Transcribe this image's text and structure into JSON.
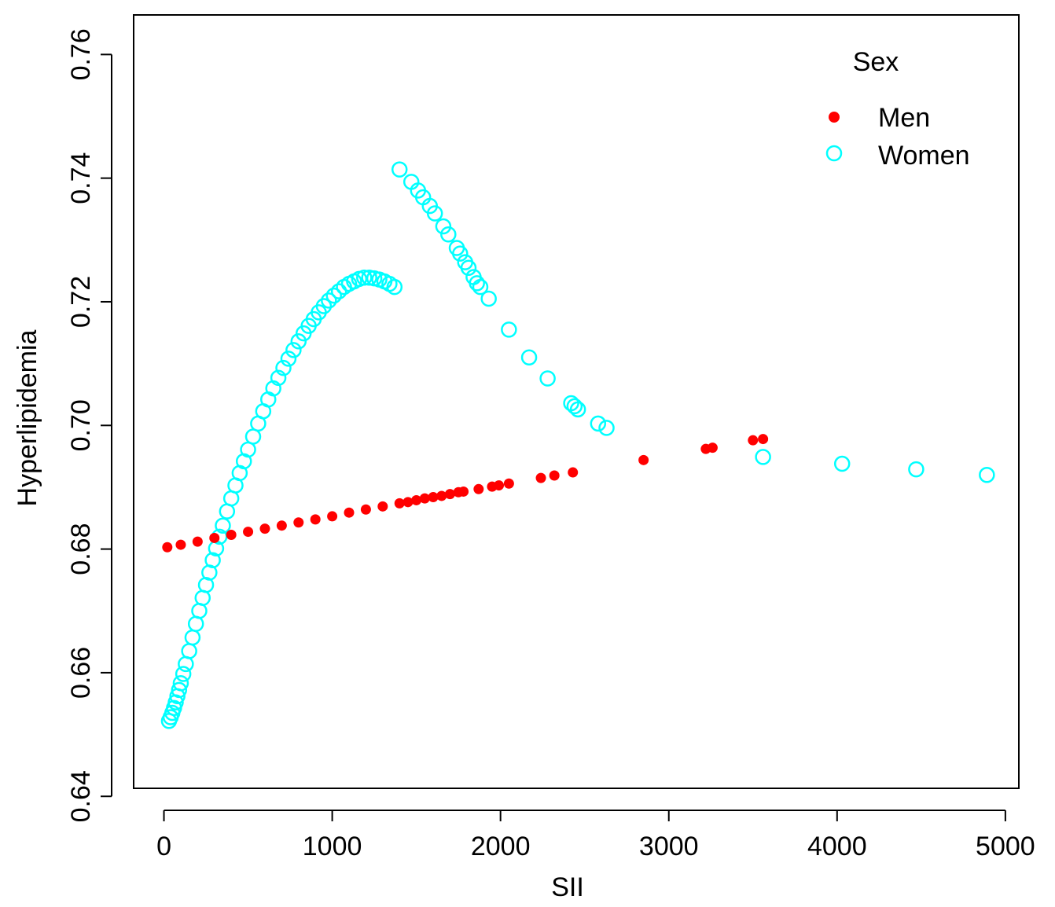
{
  "chart_data": {
    "type": "scatter",
    "title": "",
    "xlabel": "SII",
    "ylabel": "Hyperlipidemia",
    "xlim": [
      -180,
      5080
    ],
    "ylim": [
      0.6413,
      0.7664
    ],
    "xticks": [
      0,
      1000,
      2000,
      3000,
      4000,
      5000
    ],
    "xtick_labels": [
      "0",
      "1000",
      "2000",
      "3000",
      "4000",
      "5000"
    ],
    "yticks": [
      0.64,
      0.66,
      0.68,
      0.7,
      0.72,
      0.74,
      0.76
    ],
    "ytick_labels": [
      "0.64",
      "0.66",
      "0.68",
      "0.70",
      "0.72",
      "0.74",
      "0.76"
    ],
    "grid": false,
    "legend": {
      "title": "Sex",
      "position": "top-right",
      "entries": [
        {
          "label": "Men",
          "marker": "filled-circle",
          "color": "#ff0000"
        },
        {
          "label": "Women",
          "marker": "open-circle",
          "color": "#00ffff"
        }
      ]
    },
    "series": [
      {
        "name": "Men",
        "color": "#ff0000",
        "marker": "filled-circle",
        "x": [
          20,
          100,
          200,
          300,
          400,
          500,
          600,
          700,
          800,
          900,
          1000,
          1100,
          1200,
          1300,
          1400,
          1450,
          1500,
          1550,
          1600,
          1650,
          1700,
          1750,
          1780,
          1870,
          1950,
          1990,
          2050,
          2240,
          2320,
          2430,
          2850,
          3220,
          3260,
          3500,
          3560
        ],
        "y": [
          0.6803,
          0.6807,
          0.6812,
          0.6818,
          0.6823,
          0.6828,
          0.6833,
          0.6838,
          0.6843,
          0.6848,
          0.6853,
          0.6859,
          0.6864,
          0.6869,
          0.6874,
          0.6876,
          0.6879,
          0.6882,
          0.6884,
          0.6886,
          0.6889,
          0.6892,
          0.6893,
          0.6897,
          0.6901,
          0.6903,
          0.6906,
          0.6915,
          0.6919,
          0.6924,
          0.6944,
          0.6962,
          0.6964,
          0.6976,
          0.6978
        ]
      },
      {
        "name": "Women",
        "color": "#00ffff",
        "marker": "open-circle",
        "x": [
          30,
          40,
          50,
          60,
          70,
          80,
          90,
          100,
          115,
          130,
          150,
          170,
          190,
          210,
          230,
          250,
          270,
          290,
          310,
          330,
          350,
          375,
          400,
          425,
          450,
          475,
          500,
          530,
          560,
          590,
          620,
          650,
          680,
          710,
          740,
          770,
          800,
          830,
          860,
          890,
          920,
          950,
          980,
          1010,
          1040,
          1070,
          1100,
          1130,
          1160,
          1190,
          1220,
          1250,
          1280,
          1310,
          1340,
          1370,
          1400,
          1470,
          1510,
          1540,
          1580,
          1610,
          1660,
          1690,
          1740,
          1760,
          1790,
          1810,
          1840,
          1860,
          1880,
          1930,
          2050,
          2170,
          2280,
          2420,
          2440,
          2460,
          2580,
          2630,
          3560,
          4030,
          4470,
          4890
        ],
        "y": [
          0.6522,
          0.6528,
          0.6535,
          0.6543,
          0.6552,
          0.6562,
          0.6572,
          0.6583,
          0.6598,
          0.6614,
          0.6635,
          0.6657,
          0.6679,
          0.67,
          0.6721,
          0.6742,
          0.6762,
          0.6782,
          0.6801,
          0.682,
          0.6838,
          0.6861,
          0.6882,
          0.6903,
          0.6923,
          0.6942,
          0.6961,
          0.6982,
          0.7003,
          0.7023,
          0.7042,
          0.706,
          0.7077,
          0.7093,
          0.7108,
          0.7122,
          0.7136,
          0.7149,
          0.7161,
          0.7172,
          0.7183,
          0.7193,
          0.7202,
          0.721,
          0.7217,
          0.7224,
          0.7229,
          0.7233,
          0.7237,
          0.7239,
          0.7239,
          0.7238,
          0.7236,
          0.7233,
          0.7229,
          0.7224,
          0.7414,
          0.7394,
          0.738,
          0.7369,
          0.7355,
          0.7343,
          0.7322,
          0.7309,
          0.7287,
          0.7278,
          0.7264,
          0.7255,
          0.724,
          0.723,
          0.7224,
          0.7205,
          0.7155,
          0.711,
          0.7076,
          0.7036,
          0.7031,
          0.7026,
          0.7003,
          0.6996,
          0.6949,
          0.6938,
          0.6929,
          0.692
        ]
      }
    ]
  }
}
